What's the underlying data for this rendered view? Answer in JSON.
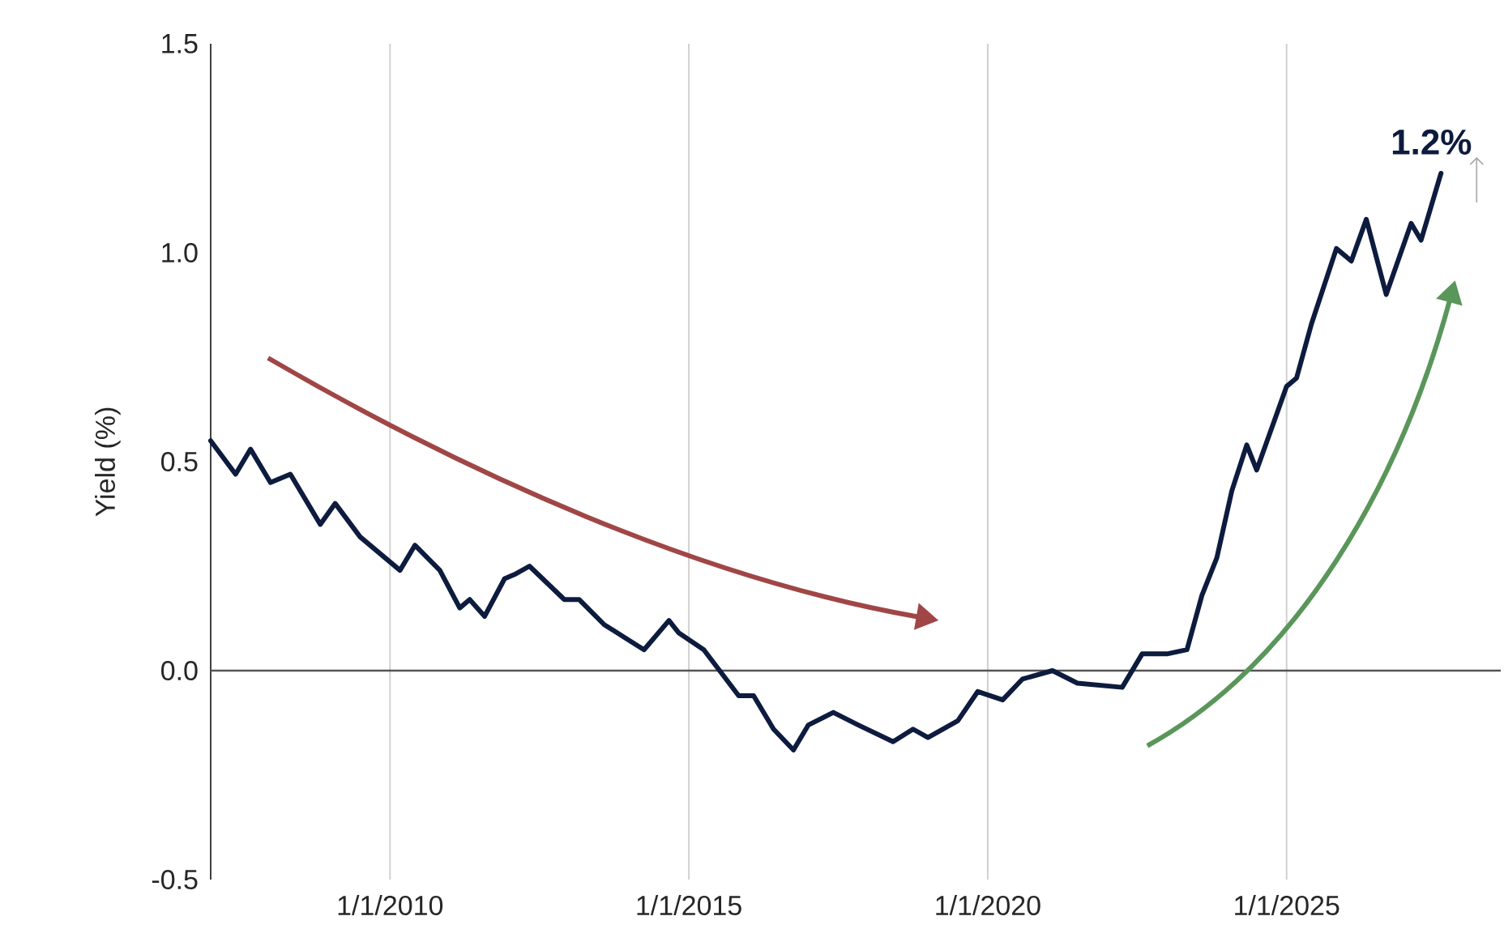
{
  "chart_data": {
    "type": "line",
    "ylabel": "Yield (%)",
    "x": [
      "2007-01",
      "2007-06",
      "2007-09",
      "2008-01",
      "2008-05",
      "2008-11",
      "2009-02",
      "2009-07",
      "2010-03",
      "2010-06",
      "2010-11",
      "2011-03",
      "2011-05",
      "2011-08",
      "2011-12",
      "2012-02",
      "2012-05",
      "2012-12",
      "2013-03",
      "2013-08",
      "2013-12",
      "2014-04",
      "2014-09",
      "2014-11",
      "2015-04",
      "2015-11",
      "2016-02",
      "2016-06",
      "2016-10",
      "2017-01",
      "2017-06",
      "2017-11",
      "2018-06",
      "2018-10",
      "2019-01",
      "2019-07",
      "2019-11",
      "2020-04",
      "2020-08",
      "2021-02",
      "2021-07",
      "2022-04",
      "2022-08",
      "2023-01",
      "2023-05",
      "2023-08",
      "2023-11",
      "2024-02",
      "2024-05",
      "2024-07",
      "2025-01",
      "2025-03",
      "2025-06",
      "2025-11",
      "2026-02",
      "2026-05",
      "2026-09",
      "2027-02",
      "2027-04",
      "2027-08"
    ],
    "series": [
      {
        "color": "#0d1b3e",
        "values": [
          0.55,
          0.47,
          0.53,
          0.45,
          0.47,
          0.35,
          0.4,
          0.32,
          0.24,
          0.3,
          0.24,
          0.15,
          0.17,
          0.13,
          0.22,
          0.23,
          0.25,
          0.17,
          0.17,
          0.11,
          0.08,
          0.05,
          0.12,
          0.09,
          0.05,
          -0.06,
          -0.06,
          -0.14,
          -0.19,
          -0.13,
          -0.1,
          -0.13,
          -0.17,
          -0.14,
          -0.16,
          -0.12,
          -0.05,
          -0.07,
          -0.02,
          0.0,
          -0.03,
          -0.04,
          0.04,
          0.04,
          0.05,
          0.18,
          0.27,
          0.43,
          0.54,
          0.48,
          0.68,
          0.7,
          0.83,
          1.01,
          0.98,
          1.08,
          0.9,
          1.07,
          1.03,
          1.19
        ]
      }
    ],
    "xlim": [
      "2007-01",
      "2028-08"
    ],
    "xticks": [
      {
        "value": "2010-01-01",
        "label": "1/1/2010"
      },
      {
        "value": "2015-01-01",
        "label": "1/1/2015"
      },
      {
        "value": "2020-01-01",
        "label": "1/1/2020"
      },
      {
        "value": "2025-01-01",
        "label": "1/1/2025"
      }
    ],
    "ylim": [
      -0.5,
      1.5
    ],
    "yticks": [
      -0.5,
      {
        "value": 0,
        "label": "0.0"
      },
      0.5,
      {
        "value": 1,
        "label": "1.0"
      },
      1.5
    ],
    "grid": "x",
    "line_style": "solid",
    "ref_lines": [
      {
        "axis": "y",
        "value": 0,
        "color": "#555555"
      }
    ],
    "annotations": [
      {
        "text": "1.2%",
        "x": "2027-08",
        "y": 1.19
      }
    ]
  }
}
